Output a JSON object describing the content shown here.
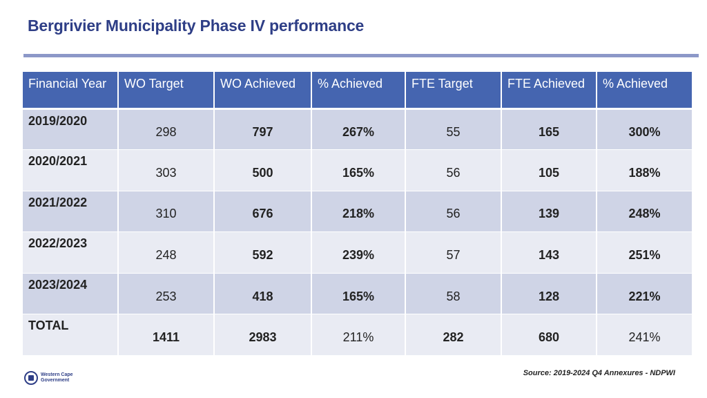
{
  "title": "Bergrivier Municipality Phase IV performance",
  "table": {
    "headers": [
      "Financial Year",
      "WO Target",
      "WO Achieved",
      "% Achieved",
      "FTE Target",
      "FTE Achieved",
      "% Achieved"
    ],
    "rows": [
      [
        "2019/2020",
        "298",
        "797",
        "267%",
        "55",
        "165",
        "300%"
      ],
      [
        "2020/2021",
        "303",
        "500",
        "165%",
        "56",
        "105",
        "188%"
      ],
      [
        "2021/2022",
        "310",
        "676",
        "218%",
        "56",
        "139",
        "248%"
      ],
      [
        "2022/2023",
        "248",
        "592",
        "239%",
        "57",
        "143",
        "251%"
      ],
      [
        "2023/2024",
        "253",
        "418",
        "165%",
        "58",
        "128",
        "221%"
      ],
      [
        "TOTAL",
        "1411",
        "2983",
        "211%",
        "282",
        "680",
        "241%"
      ]
    ]
  },
  "source": "Source: 2019-2024 Q4 Annexures - NDPWI",
  "logo": {
    "line1": "Western Cape",
    "line2": "Government",
    "icon": "coat-of-arms-icon"
  },
  "colors": {
    "title": "#2e3e86",
    "header_bg": "#4565b0",
    "row_dark": "#cfd4e6",
    "row_light": "#e9ebf3",
    "rule": "#8c98c8"
  }
}
